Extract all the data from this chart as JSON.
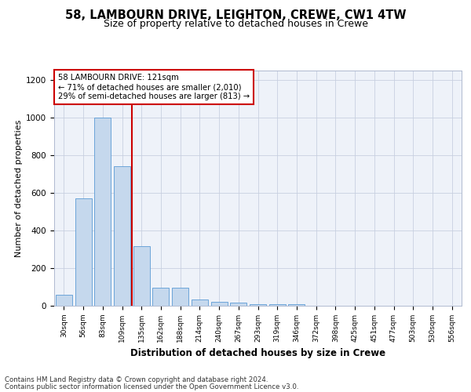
{
  "title1": "58, LAMBOURN DRIVE, LEIGHTON, CREWE, CW1 4TW",
  "title2": "Size of property relative to detached houses in Crewe",
  "xlabel": "Distribution of detached houses by size in Crewe",
  "ylabel": "Number of detached properties",
  "categories": [
    "30sqm",
    "56sqm",
    "83sqm",
    "109sqm",
    "135sqm",
    "162sqm",
    "188sqm",
    "214sqm",
    "240sqm",
    "267sqm",
    "293sqm",
    "319sqm",
    "346sqm",
    "372sqm",
    "398sqm",
    "425sqm",
    "451sqm",
    "477sqm",
    "503sqm",
    "530sqm",
    "556sqm"
  ],
  "values": [
    60,
    570,
    1000,
    740,
    315,
    95,
    95,
    35,
    20,
    15,
    10,
    10,
    10,
    0,
    0,
    0,
    0,
    0,
    0,
    0,
    0
  ],
  "bar_color": "#c5d8ed",
  "bar_edge_color": "#5b9bd5",
  "annotation_text": "58 LAMBOURN DRIVE: 121sqm\n← 71% of detached houses are smaller (2,010)\n29% of semi-detached houses are larger (813) →",
  "annotation_box_color": "#ffffff",
  "annotation_box_edge": "#cc0000",
  "red_line_color": "#cc0000",
  "footer1": "Contains HM Land Registry data © Crown copyright and database right 2024.",
  "footer2": "Contains public sector information licensed under the Open Government Licence v3.0.",
  "ylim": [
    0,
    1250
  ],
  "yticks": [
    0,
    200,
    400,
    600,
    800,
    1000,
    1200
  ],
  "plot_bg_color": "#eef2f9",
  "title1_fontsize": 10.5,
  "title2_fontsize": 9,
  "xlabel_fontsize": 8.5,
  "ylabel_fontsize": 8
}
